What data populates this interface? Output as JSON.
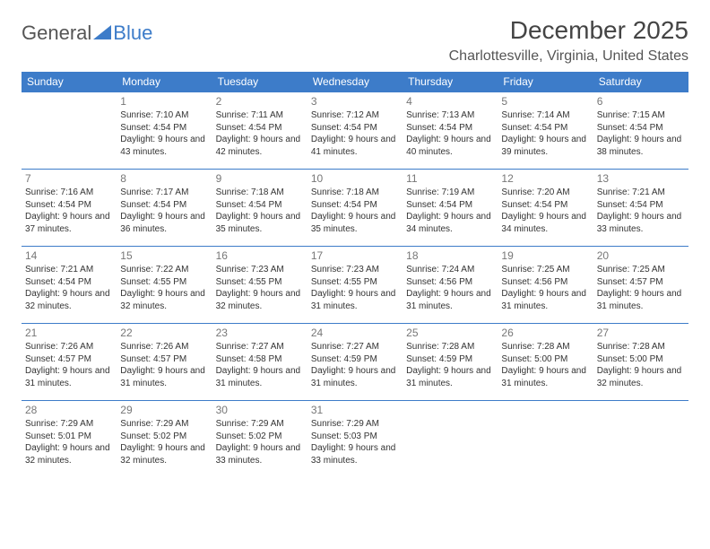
{
  "logo": {
    "text1": "General",
    "text2": "Blue"
  },
  "title": "December 2025",
  "subtitle": "Charlottesville, Virginia, United States",
  "colors": {
    "header_bg": "#3d7cc9",
    "header_fg": "#ffffff",
    "row_border": "#3d7cc9"
  },
  "day_headers": [
    "Sunday",
    "Monday",
    "Tuesday",
    "Wednesday",
    "Thursday",
    "Friday",
    "Saturday"
  ],
  "weeks": [
    [
      {
        "day": "",
        "sunrise": "",
        "sunset": "",
        "daylight": ""
      },
      {
        "day": "1",
        "sunrise": "Sunrise: 7:10 AM",
        "sunset": "Sunset: 4:54 PM",
        "daylight": "Daylight: 9 hours and 43 minutes."
      },
      {
        "day": "2",
        "sunrise": "Sunrise: 7:11 AM",
        "sunset": "Sunset: 4:54 PM",
        "daylight": "Daylight: 9 hours and 42 minutes."
      },
      {
        "day": "3",
        "sunrise": "Sunrise: 7:12 AM",
        "sunset": "Sunset: 4:54 PM",
        "daylight": "Daylight: 9 hours and 41 minutes."
      },
      {
        "day": "4",
        "sunrise": "Sunrise: 7:13 AM",
        "sunset": "Sunset: 4:54 PM",
        "daylight": "Daylight: 9 hours and 40 minutes."
      },
      {
        "day": "5",
        "sunrise": "Sunrise: 7:14 AM",
        "sunset": "Sunset: 4:54 PM",
        "daylight": "Daylight: 9 hours and 39 minutes."
      },
      {
        "day": "6",
        "sunrise": "Sunrise: 7:15 AM",
        "sunset": "Sunset: 4:54 PM",
        "daylight": "Daylight: 9 hours and 38 minutes."
      }
    ],
    [
      {
        "day": "7",
        "sunrise": "Sunrise: 7:16 AM",
        "sunset": "Sunset: 4:54 PM",
        "daylight": "Daylight: 9 hours and 37 minutes."
      },
      {
        "day": "8",
        "sunrise": "Sunrise: 7:17 AM",
        "sunset": "Sunset: 4:54 PM",
        "daylight": "Daylight: 9 hours and 36 minutes."
      },
      {
        "day": "9",
        "sunrise": "Sunrise: 7:18 AM",
        "sunset": "Sunset: 4:54 PM",
        "daylight": "Daylight: 9 hours and 35 minutes."
      },
      {
        "day": "10",
        "sunrise": "Sunrise: 7:18 AM",
        "sunset": "Sunset: 4:54 PM",
        "daylight": "Daylight: 9 hours and 35 minutes."
      },
      {
        "day": "11",
        "sunrise": "Sunrise: 7:19 AM",
        "sunset": "Sunset: 4:54 PM",
        "daylight": "Daylight: 9 hours and 34 minutes."
      },
      {
        "day": "12",
        "sunrise": "Sunrise: 7:20 AM",
        "sunset": "Sunset: 4:54 PM",
        "daylight": "Daylight: 9 hours and 34 minutes."
      },
      {
        "day": "13",
        "sunrise": "Sunrise: 7:21 AM",
        "sunset": "Sunset: 4:54 PM",
        "daylight": "Daylight: 9 hours and 33 minutes."
      }
    ],
    [
      {
        "day": "14",
        "sunrise": "Sunrise: 7:21 AM",
        "sunset": "Sunset: 4:54 PM",
        "daylight": "Daylight: 9 hours and 32 minutes."
      },
      {
        "day": "15",
        "sunrise": "Sunrise: 7:22 AM",
        "sunset": "Sunset: 4:55 PM",
        "daylight": "Daylight: 9 hours and 32 minutes."
      },
      {
        "day": "16",
        "sunrise": "Sunrise: 7:23 AM",
        "sunset": "Sunset: 4:55 PM",
        "daylight": "Daylight: 9 hours and 32 minutes."
      },
      {
        "day": "17",
        "sunrise": "Sunrise: 7:23 AM",
        "sunset": "Sunset: 4:55 PM",
        "daylight": "Daylight: 9 hours and 31 minutes."
      },
      {
        "day": "18",
        "sunrise": "Sunrise: 7:24 AM",
        "sunset": "Sunset: 4:56 PM",
        "daylight": "Daylight: 9 hours and 31 minutes."
      },
      {
        "day": "19",
        "sunrise": "Sunrise: 7:25 AM",
        "sunset": "Sunset: 4:56 PM",
        "daylight": "Daylight: 9 hours and 31 minutes."
      },
      {
        "day": "20",
        "sunrise": "Sunrise: 7:25 AM",
        "sunset": "Sunset: 4:57 PM",
        "daylight": "Daylight: 9 hours and 31 minutes."
      }
    ],
    [
      {
        "day": "21",
        "sunrise": "Sunrise: 7:26 AM",
        "sunset": "Sunset: 4:57 PM",
        "daylight": "Daylight: 9 hours and 31 minutes."
      },
      {
        "day": "22",
        "sunrise": "Sunrise: 7:26 AM",
        "sunset": "Sunset: 4:57 PM",
        "daylight": "Daylight: 9 hours and 31 minutes."
      },
      {
        "day": "23",
        "sunrise": "Sunrise: 7:27 AM",
        "sunset": "Sunset: 4:58 PM",
        "daylight": "Daylight: 9 hours and 31 minutes."
      },
      {
        "day": "24",
        "sunrise": "Sunrise: 7:27 AM",
        "sunset": "Sunset: 4:59 PM",
        "daylight": "Daylight: 9 hours and 31 minutes."
      },
      {
        "day": "25",
        "sunrise": "Sunrise: 7:28 AM",
        "sunset": "Sunset: 4:59 PM",
        "daylight": "Daylight: 9 hours and 31 minutes."
      },
      {
        "day": "26",
        "sunrise": "Sunrise: 7:28 AM",
        "sunset": "Sunset: 5:00 PM",
        "daylight": "Daylight: 9 hours and 31 minutes."
      },
      {
        "day": "27",
        "sunrise": "Sunrise: 7:28 AM",
        "sunset": "Sunset: 5:00 PM",
        "daylight": "Daylight: 9 hours and 32 minutes."
      }
    ],
    [
      {
        "day": "28",
        "sunrise": "Sunrise: 7:29 AM",
        "sunset": "Sunset: 5:01 PM",
        "daylight": "Daylight: 9 hours and 32 minutes."
      },
      {
        "day": "29",
        "sunrise": "Sunrise: 7:29 AM",
        "sunset": "Sunset: 5:02 PM",
        "daylight": "Daylight: 9 hours and 32 minutes."
      },
      {
        "day": "30",
        "sunrise": "Sunrise: 7:29 AM",
        "sunset": "Sunset: 5:02 PM",
        "daylight": "Daylight: 9 hours and 33 minutes."
      },
      {
        "day": "31",
        "sunrise": "Sunrise: 7:29 AM",
        "sunset": "Sunset: 5:03 PM",
        "daylight": "Daylight: 9 hours and 33 minutes."
      },
      {
        "day": "",
        "sunrise": "",
        "sunset": "",
        "daylight": ""
      },
      {
        "day": "",
        "sunrise": "",
        "sunset": "",
        "daylight": ""
      },
      {
        "day": "",
        "sunrise": "",
        "sunset": "",
        "daylight": ""
      }
    ]
  ]
}
